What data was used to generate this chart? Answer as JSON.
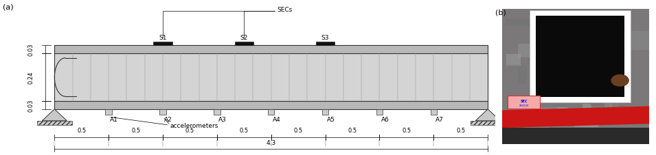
{
  "fig_width": 9.55,
  "fig_height": 2.28,
  "dpi": 100,
  "background_color": "#ffffff",
  "beam_color": "#d4d4d4",
  "beam_edge_color": "#333333",
  "strip_color": "#b8b8b8",
  "num_segments": 24,
  "accelerometer_labels": [
    "A1",
    "A2",
    "A3",
    "A4",
    "A5",
    "A6",
    "A7"
  ],
  "sec_labels": [
    "S1",
    "S2",
    "S3"
  ],
  "label_fontsize": 6.5,
  "dim_fontsize": 6.0,
  "panel_a_label": "(a)",
  "panel_b_label": "(b)",
  "secs_label": "SECs",
  "accel_label": "accelerometers",
  "dim_labels_side": [
    "0.03",
    "0.24",
    "0.03"
  ],
  "dim_segment": "0.5",
  "dim_total": "4.3",
  "photo_bg": "#6a6a6a",
  "photo_dark_bg": "#3a3a4a",
  "photo_sec_color": "#111111",
  "photo_sec_border": "#e0e0e0",
  "photo_red": "#cc1515",
  "photo_label_pink": "#f0a0a0",
  "photo_label_border": "#cc3333"
}
